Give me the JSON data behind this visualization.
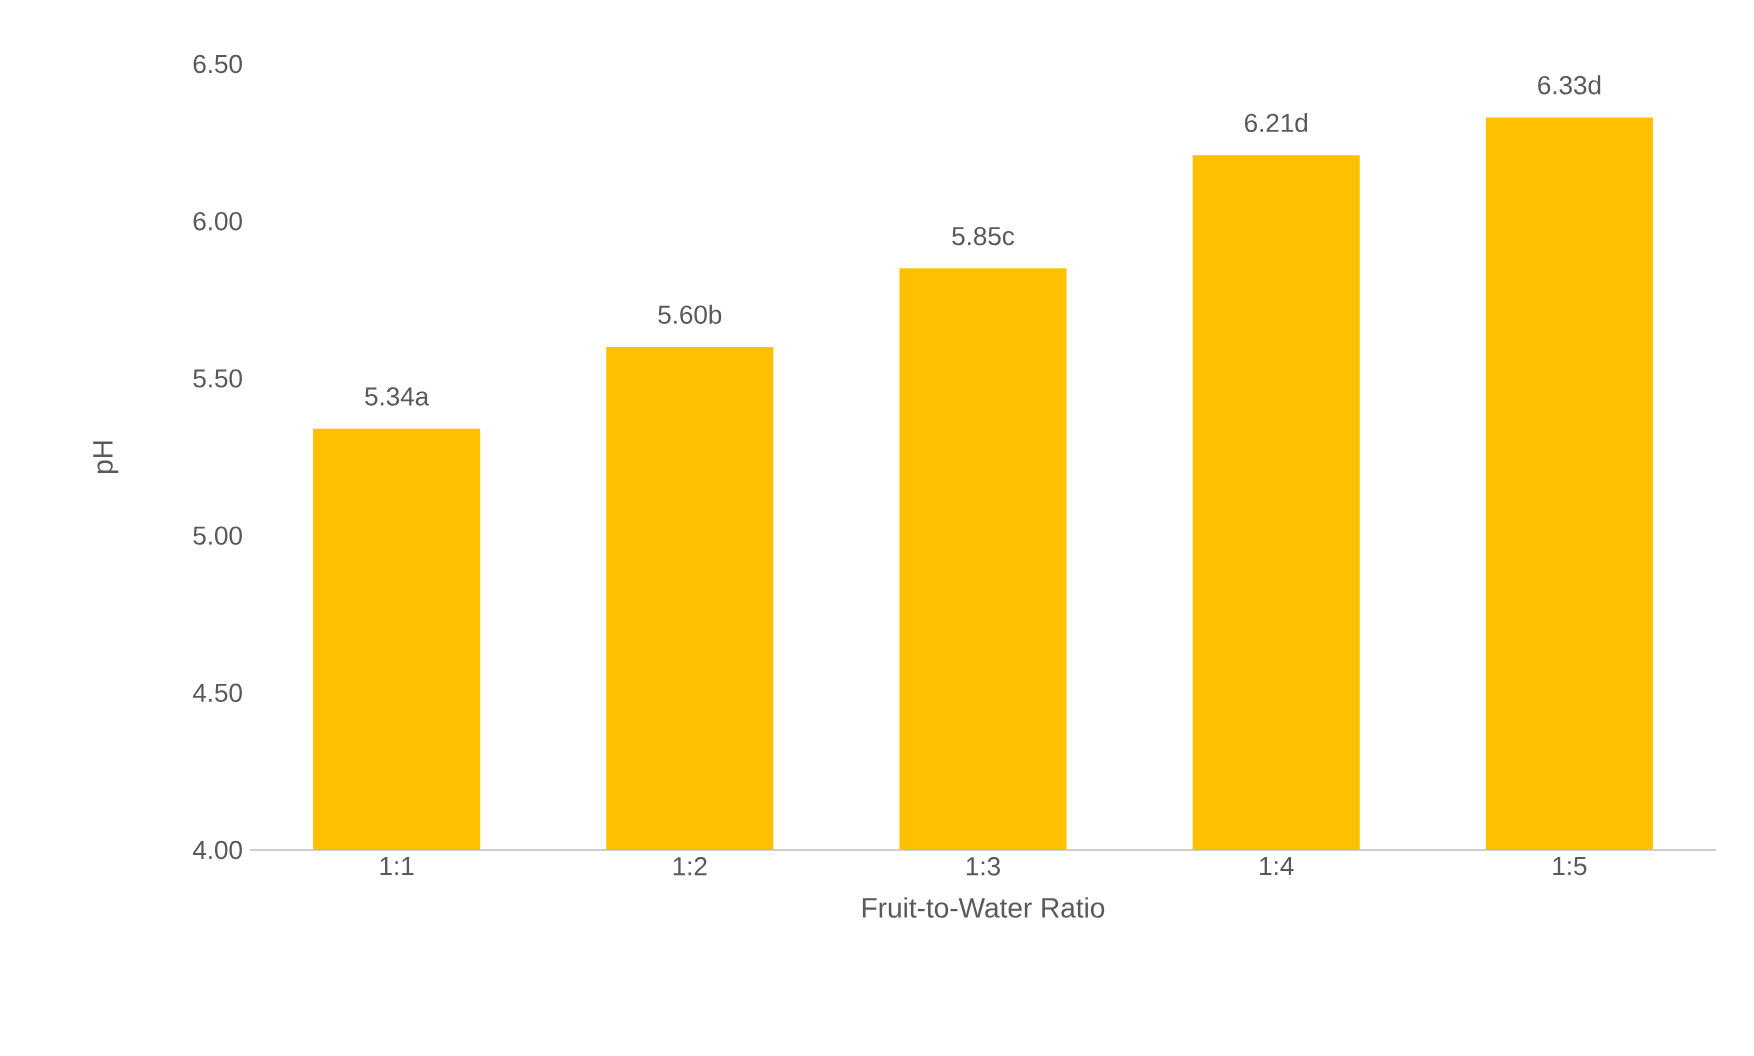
{
  "chart_data": {
    "type": "bar",
    "xlabel": "Fruit-to-Water Ratio",
    "ylabel": "pH",
    "categories": [
      "1:1",
      "1:2",
      "1:3",
      "1:4",
      "1:5"
    ],
    "values": [
      5.34,
      5.6,
      5.85,
      6.21,
      6.33
    ],
    "value_labels": [
      "5.34a",
      "5.60b",
      "5.85c",
      "6.21d",
      "6.33d"
    ],
    "color": "#ffc000",
    "ylim": [
      4,
      6.5
    ],
    "yticks": [
      {
        "value": 4,
        "label": "4.00"
      },
      {
        "value": 4.5,
        "label": "4.50"
      },
      {
        "value": 5,
        "label": "5.00"
      },
      {
        "value": 5.5,
        "label": "5.50"
      },
      {
        "value": 6,
        "label": "6.00"
      },
      {
        "value": 6.5,
        "label": "6.50"
      }
    ],
    "grid": false
  }
}
